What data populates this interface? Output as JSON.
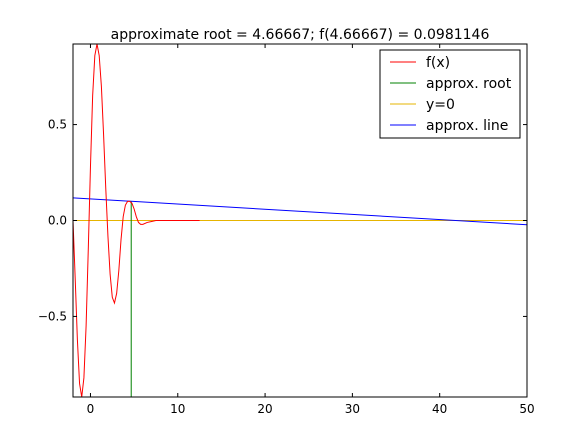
{
  "chart_data": {
    "type": "line",
    "title": "approximate root = 4.66667; f(4.66667) = 0.0981146",
    "xlabel": "",
    "ylabel": "",
    "xlim": [
      -2,
      50
    ],
    "ylim": [
      -0.92,
      0.92
    ],
    "x_ticks": [
      0,
      10,
      20,
      30,
      40,
      50
    ],
    "x_tick_labels": [
      "0",
      "10",
      "20",
      "30",
      "40",
      "50"
    ],
    "y_ticks": [
      0.5,
      0.0,
      -0.5
    ],
    "y_tick_labels": [
      "0.5",
      "0.0",
      "−0.5"
    ],
    "grid": false,
    "legend_position": "top-right",
    "series": [
      {
        "name": "f(x)",
        "color": "#ff0000",
        "x": [
          -2.0,
          -1.75,
          -1.5,
          -1.25,
          -1.0,
          -0.75,
          -0.5,
          -0.25,
          0.0,
          0.25,
          0.5,
          0.75,
          1.0,
          1.25,
          1.5,
          1.75,
          2.0,
          2.25,
          2.5,
          2.75,
          3.0,
          3.25,
          3.5,
          3.75,
          4.0,
          4.25,
          4.5,
          4.75,
          5.0,
          5.25,
          5.5,
          5.75,
          6.0,
          6.5,
          7.0,
          7.5,
          8.0,
          9.0,
          10.0,
          11.0,
          12.0,
          12.5
        ],
        "y": [
          0.0,
          -0.3,
          -0.62,
          -0.85,
          -0.92,
          -0.82,
          -0.55,
          -0.15,
          0.28,
          0.65,
          0.86,
          0.92,
          0.86,
          0.7,
          0.45,
          0.17,
          -0.08,
          -0.28,
          -0.4,
          -0.43,
          -0.38,
          -0.26,
          -0.1,
          0.02,
          0.08,
          0.1,
          0.1,
          0.09,
          0.06,
          0.02,
          -0.01,
          -0.02,
          -0.02,
          -0.01,
          -0.005,
          0.0,
          0.0,
          0.0,
          0.0,
          0.0,
          0.0,
          0.0
        ]
      },
      {
        "name": "approx. root",
        "color": "#008000",
        "x": [
          4.66667,
          4.66667
        ],
        "y": [
          -0.92,
          0.0981146
        ]
      },
      {
        "name": "y=0",
        "color": "#e6b400",
        "x": [
          -2,
          50
        ],
        "y": [
          0,
          0
        ]
      },
      {
        "name": "approx. line",
        "color": "#0000ff",
        "x": [
          -2,
          50
        ],
        "y": [
          0.118,
          -0.022
        ]
      }
    ]
  }
}
